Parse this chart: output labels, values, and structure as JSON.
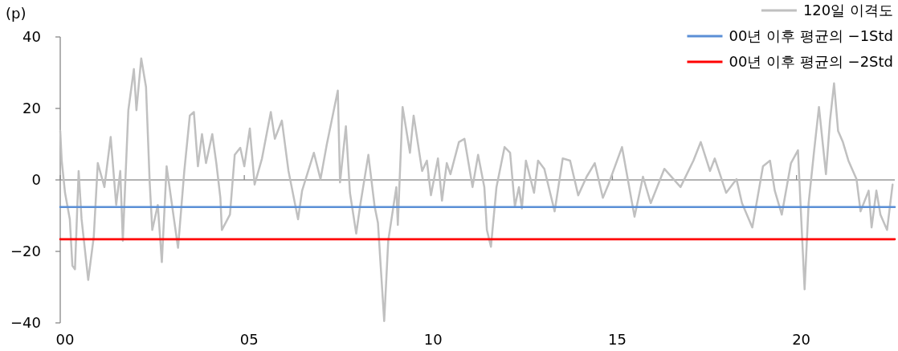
{
  "chart_data": {
    "type": "line",
    "ylabel": "(p)",
    "legend": "top right",
    "xlim": [
      0,
      22.67
    ],
    "xticks": [
      {
        "value": 0,
        "label": "00"
      },
      {
        "value": 5,
        "label": "05"
      },
      {
        "value": 10,
        "label": "10"
      },
      {
        "value": 15,
        "label": "15"
      },
      {
        "value": 20,
        "label": "20"
      }
    ],
    "ylim": [
      -40,
      40
    ],
    "yticks": [
      {
        "value": -40,
        "label": "−40"
      },
      {
        "value": -20,
        "label": "−20"
      },
      0,
      20,
      40
    ],
    "series": [
      {
        "name": "120일 이격도",
        "color": "#c0c0c0",
        "x": [
          0,
          0.04,
          0.13,
          0.26,
          0.33,
          0.4,
          0.5,
          0.58,
          0.76,
          0.91,
          1.02,
          1.2,
          1.37,
          1.52,
          1.63,
          1.7,
          1.85,
          2.0,
          2.07,
          2.2,
          2.33,
          2.43,
          2.5,
          2.65,
          2.76,
          2.89,
          3.09,
          3.2,
          3.37,
          3.52,
          3.63,
          3.74,
          3.85,
          3.96,
          4.13,
          4.24,
          4.35,
          4.39,
          4.61,
          4.74,
          4.89,
          5.0,
          5.15,
          5.28,
          5.48,
          5.72,
          5.83,
          6.02,
          6.2,
          6.46,
          6.57,
          6.89,
          7.07,
          7.24,
          7.54,
          7.6,
          7.76,
          7.87,
          8.04,
          8.15,
          8.37,
          8.54,
          8.63,
          8.8,
          8.91,
          9.13,
          9.17,
          9.3,
          9.5,
          9.6,
          9.83,
          9.96,
          10.07,
          10.26,
          10.37,
          10.5,
          10.6,
          10.83,
          10.98,
          11.2,
          11.35,
          11.52,
          11.59,
          11.7,
          11.85,
          12.07,
          12.22,
          12.35,
          12.46,
          12.54,
          12.65,
          12.87,
          12.98,
          13.15,
          13.43,
          13.65,
          13.85,
          14.07,
          14.3,
          14.52,
          14.74,
          14.89,
          15.26,
          15.6,
          15.83,
          16.04,
          16.41,
          16.85,
          17.2,
          17.4,
          17.65,
          17.78,
          18.09,
          18.37,
          18.52,
          18.8,
          19.09,
          19.28,
          19.41,
          19.6,
          19.85,
          20.04,
          20.22,
          20.33,
          20.48,
          20.61,
          20.8,
          20.91,
          21.02,
          21.13,
          21.26,
          21.41,
          21.63,
          21.74,
          21.96,
          22.04,
          22.17,
          22.28,
          22.46,
          22.61
        ],
        "values": [
          13.7,
          5.4,
          -3.6,
          -11,
          -24,
          -25,
          2.5,
          -11,
          -28,
          -16,
          4.7,
          -2,
          12,
          -7,
          2.5,
          -17,
          19.5,
          31,
          19.5,
          34,
          26,
          -0.7,
          -14,
          -7,
          -23,
          3.8,
          -11,
          -19,
          2.5,
          18,
          19,
          3.8,
          12.8,
          4.7,
          12.8,
          4.7,
          -5,
          -14,
          -9.7,
          7,
          9,
          3.8,
          14.4,
          -1.3,
          6,
          19,
          11.5,
          16.6,
          2.5,
          -11,
          -3,
          7.6,
          0.2,
          9.9,
          25,
          -0.7,
          15,
          -3.6,
          -15,
          -7,
          7,
          -7.4,
          -12,
          -39.5,
          -17,
          -2,
          -12.6,
          20.4,
          7.6,
          18,
          2.5,
          5.4,
          -4.3,
          6,
          -5.8,
          4.7,
          1.6,
          10.6,
          11.5,
          -2,
          7,
          -2,
          -14,
          -18.7,
          -2,
          9.2,
          7.6,
          -7.4,
          -2,
          -8,
          5.4,
          -3.6,
          5.4,
          3.1,
          -8.8,
          6,
          5.4,
          -4.3,
          0.9,
          4.7,
          -5,
          -1.3,
          9.2,
          -10.3,
          0.9,
          -6.5,
          3.1,
          -2,
          5.4,
          10.6,
          2.5,
          6,
          -3.6,
          0.2,
          -6.5,
          -13.3,
          3.8,
          5.4,
          -3,
          -9.7,
          4.7,
          8.3,
          -30.6,
          -6.5,
          8.3,
          20.4,
          1.6,
          16.6,
          27,
          13.7,
          10.6,
          5.4,
          0.2,
          -8.8,
          -3,
          -13.3,
          -3,
          -9.7,
          -14,
          -1.3
        ]
      },
      {
        "name": "00년 이후 평균의 −1Std",
        "color": "#5b8fd6",
        "x": [
          0,
          22.67
        ],
        "values": [
          -7.6,
          -7.6
        ]
      },
      {
        "name": "00년 이후 평균의 −2Std",
        "color": "#ff0000",
        "x": [
          0,
          22.67
        ],
        "values": [
          -16.6,
          -16.6
        ]
      }
    ]
  }
}
